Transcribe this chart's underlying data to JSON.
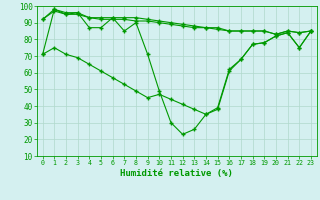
{
  "title": "",
  "xlabel": "Humidité relative (%)",
  "ylabel": "",
  "background_color": "#d4f0f0",
  "grid_color": "#b0d8cc",
  "line_color": "#009900",
  "marker_color": "#009900",
  "xlim": [
    -0.5,
    23.5
  ],
  "ylim": [
    10,
    100
  ],
  "yticks": [
    10,
    20,
    30,
    40,
    50,
    60,
    70,
    80,
    90,
    100
  ],
  "xticks": [
    0,
    1,
    2,
    3,
    4,
    5,
    6,
    7,
    8,
    9,
    10,
    11,
    12,
    13,
    14,
    15,
    16,
    17,
    18,
    19,
    20,
    21,
    22,
    23
  ],
  "series": [
    [
      71,
      75,
      71,
      69,
      65,
      61,
      57,
      53,
      49,
      45,
      47,
      44,
      41,
      38,
      35,
      38,
      61,
      68,
      77,
      78,
      82,
      84,
      75,
      85
    ],
    [
      71,
      98,
      95,
      96,
      87,
      87,
      93,
      85,
      90,
      71,
      49,
      30,
      23,
      26,
      35,
      39,
      62,
      68,
      77,
      78,
      82,
      84,
      75,
      85
    ],
    [
      92,
      98,
      96,
      96,
      93,
      93,
      93,
      93,
      93,
      92,
      91,
      90,
      89,
      88,
      87,
      86,
      85,
      85,
      85,
      85,
      83,
      85,
      84,
      85
    ],
    [
      92,
      97,
      95,
      95,
      93,
      92,
      92,
      92,
      91,
      91,
      90,
      89,
      88,
      87,
      87,
      87,
      85,
      85,
      85,
      85,
      83,
      85,
      84,
      85
    ]
  ]
}
